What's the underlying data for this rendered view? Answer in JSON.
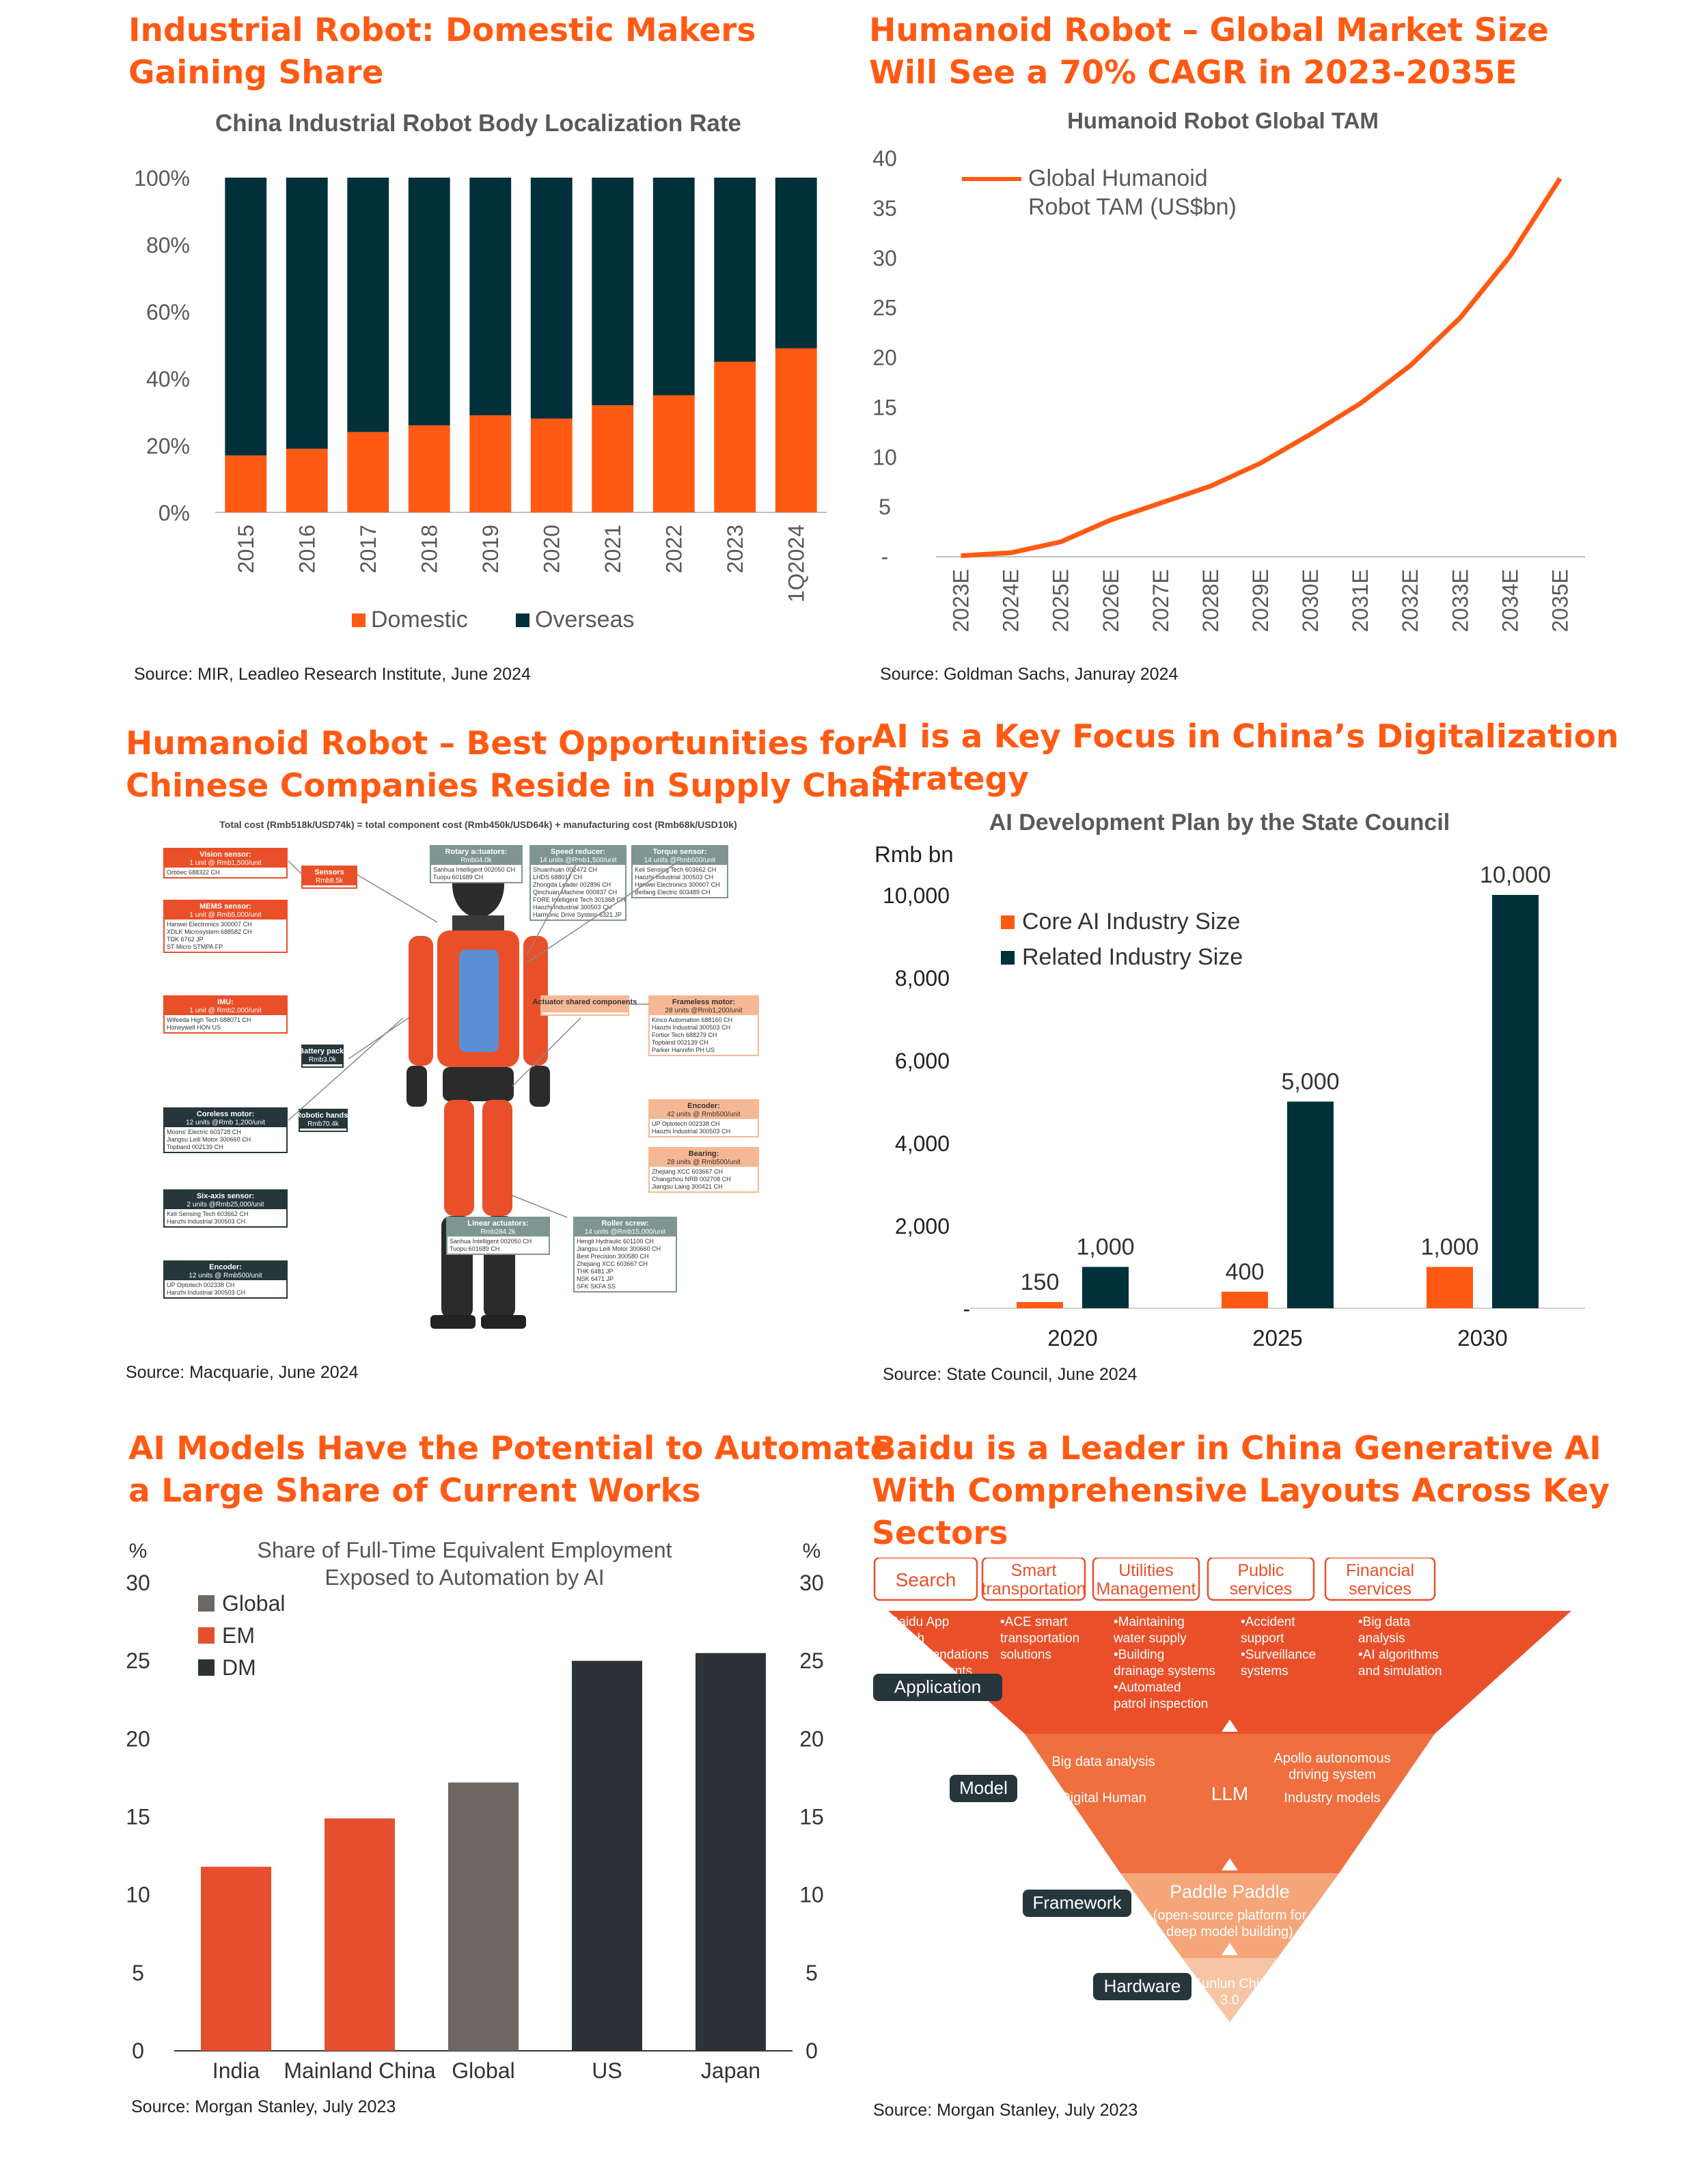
{
  "colors": {
    "accent": "#ff5a14",
    "dark": "#00303a",
    "grey_bar": "#6e6661",
    "em": "#e64f2e",
    "dm": "#2c3336",
    "text_grey": "#595959"
  },
  "panels": {
    "p1": {
      "heading_l1": "Industrial Robot: Domestic Makers",
      "heading_l2": "Gaining Share",
      "source": "Source: MIR, Leadleo Research Institute, June 2024"
    },
    "p2": {
      "heading_l1": "Humanoid Robot – Global Market Size",
      "heading_l2": "Will See a 70% CAGR in 2023-2035E",
      "source": "Source: Goldman Sachs, Januray 2024"
    },
    "p3": {
      "heading_l1": "Humanoid Robot – Best Opportunities for",
      "heading_l2": "Chinese Companies Reside in Supply Chain",
      "source": "Source: Macquarie, June 2024"
    },
    "p4": {
      "heading_l1": "AI is a Key Focus in China’s Digitalization",
      "heading_l2": "Strategy",
      "source": "Source: State Council, June 2024"
    },
    "p5": {
      "heading_l1": "AI Models Have the Potential to Automate",
      "heading_l2": "a Large Share of Current Works",
      "source": "Source: Morgan Stanley, July 2023"
    },
    "p6": {
      "heading_l1": "Baidu is a Leader in China Generative AI",
      "heading_l2": "With Comprehensive Layouts Across Key",
      "heading_l3": "Sectors",
      "source": "Source: Morgan Stanley, July 2023"
    }
  },
  "supply_chain": {
    "title": "Total cost (Rmb518k/USD74k) = total component cost (Rmb450k/USD64k) + manufacturing cost (Rmb68k/USD10k)",
    "boxes": [
      {
        "head": "Vision sensor:",
        "sub": "1 unit @ Rmb1,500/unit",
        "rows": [
          "Orbbec 688322 CH"
        ]
      },
      {
        "head": "MEMS sensor:",
        "sub": "1 unit @ Rmb5,000/unit",
        "rows": [
          "Hanwei Electronics 300007 CH",
          "XDLK Microsystem 688582 CH",
          "TDK 6762 JP",
          "ST Micro STMPA FP"
        ]
      },
      {
        "head": "IMU:",
        "sub": "1 unit @ Rmb2,000/unit",
        "rows": [
          "Wifeeda High Tech 688071 CH",
          "Honeywell HON US"
        ]
      },
      {
        "head": "Sensors",
        "sub": "Rmb8.5k",
        "rows": []
      },
      {
        "head": "Battery pack:",
        "sub": "Rmb3.0k",
        "rows": []
      },
      {
        "head": "Robotic hands:",
        "sub": "Rmb70.4k",
        "rows": []
      },
      {
        "head": "Coreless motor:",
        "sub": "12 units @Rmb 1,200/unit",
        "rows": [
          "Moons' Electric 603728 CH",
          "Jiangsu Leili Motor 300660 CH",
          "Topband 002139 CH"
        ]
      },
      {
        "head": "Six-axis sensor:",
        "sub": "2 units @Rmb25,000/unit",
        "rows": [
          "Keli Sensing Tech 603662 CH",
          "Hanzhi Industrial 300503 CH"
        ]
      },
      {
        "head": "Encoder:",
        "sub": "12 units @ Rmb500/unit",
        "rows": [
          "UP Optotech 002338 CH",
          "Hanzhi Industrial 300503 CH"
        ]
      },
      {
        "head": "Rotary actuators:",
        "sub": "Rmb84.0k",
        "rows": [
          "Sanhua Intelligent 002050 CH",
          "Tuopu 601689 CH"
        ]
      },
      {
        "head": "Speed reducer:",
        "sub": "14 units @Rmb1,500/unit",
        "rows": [
          "Shuanhuan 002472 CH",
          "LHDS 688017 CH",
          "Zhongda Leader 002896 CH",
          "Qinchuan Machine 000837 CH",
          "FORE Intelligent Tech 301368 CH",
          "Haozhi Industrial 300503 CH",
          "Harmonic Drive System 6321 JP"
        ]
      },
      {
        "head": "Torque sensor:",
        "sub": "14 units @Rmb600/unit",
        "rows": [
          "Keli Sensing Tech 603662 CH",
          "Haozhi Industrial 300503 CH",
          "Hanwei Electronics 300007 CH",
          "Beifang Electric 603489 CH"
        ]
      },
      {
        "head": "Actuator shared components",
        "sub": "",
        "rows": []
      },
      {
        "head": "Frameless motor:",
        "sub": "28 units @Rmb1,200/unit",
        "rows": [
          "Kinco Automation 688160 CH",
          "Haozhi Industrial 300503 CH",
          "Fortior Tech 688279 CH",
          "Topband 002139 CH",
          "Parker Hannifin PH US"
        ]
      },
      {
        "head": "Encoder:",
        "sub": "42 units @ Rmb500/unit",
        "rows": [
          "UP Optotech 002338 CH",
          "Haozhi Industrial 300503 CH"
        ]
      },
      {
        "head": "Bearing:",
        "sub": "28 units @ Rmb500/unit",
        "rows": [
          "Zhejiang XCC 603667 CH",
          "Changzhou NRB 002708 CH",
          "Jiangsu Laing 300421 CH"
        ]
      },
      {
        "head": "Linear actuators:",
        "sub": "Rmb284.2k",
        "rows": [
          "Sanhua Intelligent 002050 CH",
          "Tuopu 601689 CH"
        ]
      },
      {
        "head": "Roller screw:",
        "sub": "14 units @Rmb15,000/unit",
        "rows": [
          "Hengli Hydraulic 601100 CH",
          "Jiangsu Leili Motor 300660 CH",
          "Best Precision 300580 CH",
          "Zhejiang XCC 603667 CH",
          "THK 6481 JP",
          "NSK 6471 JP",
          "SFK SKFA SS"
        ]
      }
    ]
  },
  "baidu": {
    "sectors": [
      "Search",
      "Smart transportation",
      "Utilities Management",
      "Public services",
      "Financial services"
    ],
    "app_items": [
      "•Baidu App search recommendations •Feed contents",
      "•ACE smart transportation solutions",
      "•Maintaining water supply •Building drainage systems •Automated patrol inspection",
      "•Accident support •Surveillance systems",
      "•Big data analysis •AI algorithms and simulation"
    ],
    "layers": [
      "Application",
      "Model",
      "Framework",
      "Hardware"
    ],
    "model_items": [
      "Big data analysis",
      "Digital Human",
      "LLM",
      "Apollo autonomous driving system",
      "Industry models"
    ],
    "framework_title": "Paddle Paddle",
    "framework_sub": "(open-source platform for deep model building)",
    "hardware_item": "Kunlun Chip 3.0"
  },
  "chart_data": [
    {
      "type": "bar",
      "stacked": true,
      "title": "China Industrial Robot Body Localization Rate",
      "categories": [
        "2015",
        "2016",
        "2017",
        "2018",
        "2019",
        "2020",
        "2021",
        "2022",
        "2023",
        "1Q2024"
      ],
      "series": [
        {
          "name": "Domestic",
          "color": "#ff5a14",
          "values": [
            17,
            19,
            24,
            26,
            29,
            28,
            32,
            35,
            45,
            49
          ]
        },
        {
          "name": "Overseas",
          "color": "#00303a",
          "values": [
            83,
            81,
            76,
            74,
            71,
            72,
            68,
            65,
            55,
            51
          ]
        }
      ],
      "yticks": [
        "0%",
        "20%",
        "40%",
        "60%",
        "80%",
        "100%"
      ],
      "ylim": [
        0,
        100
      ],
      "legend": "bottom"
    },
    {
      "type": "line",
      "title": "Humanoid Robot Global TAM",
      "x": [
        "2023E",
        "2024E",
        "2025E",
        "2026E",
        "2027E",
        "2028E",
        "2029E",
        "2030E",
        "2031E",
        "2032E",
        "2033E",
        "2034E",
        "2035E"
      ],
      "series": [
        {
          "name": "Global Humanoid Robot TAM (US$bn)",
          "color": "#ff5a14",
          "values": [
            0.1,
            0.4,
            1.5,
            3.7,
            5.4,
            7.1,
            9.4,
            12.3,
            15.4,
            19.2,
            24.0,
            30.2,
            38.0
          ]
        }
      ],
      "yticks": [
        "-",
        "5",
        "10",
        "15",
        "20",
        "25",
        "30",
        "35",
        "40"
      ],
      "ylim": [
        0,
        40
      ],
      "legend": "top-left"
    },
    {
      "type": "bar",
      "title": "AI Development Plan by the State Council",
      "ylabel": "Rmb bn",
      "categories": [
        "2020",
        "2025",
        "2030"
      ],
      "series": [
        {
          "name": "Core AI Industry Size",
          "color": "#ff5a14",
          "values": [
            150,
            400,
            1000
          ],
          "labels": [
            "150",
            "400",
            "1,000"
          ]
        },
        {
          "name": "Related Industry Size",
          "color": "#00303a",
          "values": [
            1000,
            5000,
            10000
          ],
          "labels": [
            "1,000",
            "5,000",
            "10,000"
          ]
        }
      ],
      "yticks": [
        "-",
        "2,000",
        "4,000",
        "6,000",
        "8,000",
        "10,000"
      ],
      "ylim": [
        0,
        10000
      ],
      "legend": "top-left"
    },
    {
      "type": "bar",
      "title": "Share of Full-Time Equivalent Employment Exposed to Automation by AI",
      "ylabel": "%",
      "categories": [
        "India",
        "Mainland China",
        "Global",
        "US",
        "Japan"
      ],
      "values": [
        11.8,
        14.9,
        17.2,
        25.0,
        25.5
      ],
      "colors": [
        "#e64f2e",
        "#e64f2e",
        "#6e6661",
        "#2c3336",
        "#2c3336"
      ],
      "legend_entries": [
        {
          "name": "Global",
          "color": "#6e6661"
        },
        {
          "name": "EM",
          "color": "#e64f2e"
        },
        {
          "name": "DM",
          "color": "#2c3336"
        }
      ],
      "yticks": [
        "0",
        "5",
        "10",
        "15",
        "20",
        "25",
        "30"
      ],
      "ylim": [
        0,
        30
      ],
      "legend": "top-left"
    }
  ]
}
